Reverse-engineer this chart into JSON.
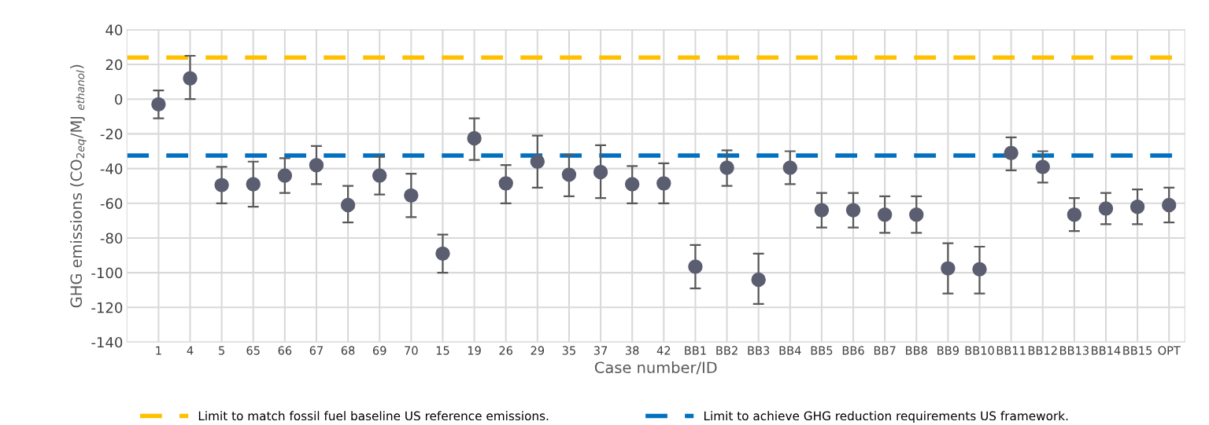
{
  "chart_data": {
    "type": "scatter",
    "xlabel": "Case number/ID",
    "ylabel": "GHG emissions (CO$_{2eq}$/MJ $_{ethanol}$)",
    "categories": [
      "1",
      "4",
      "5",
      "65",
      "66",
      "67",
      "68",
      "69",
      "70",
      "15",
      "19",
      "26",
      "29",
      "35",
      "37",
      "38",
      "42",
      "BB1",
      "BB2",
      "BB3",
      "BB4",
      "BB5",
      "BB6",
      "BB7",
      "BB8",
      "BB9",
      "BB10",
      "BB11",
      "BB12",
      "BB13",
      "BB14",
      "BB15",
      "OPT"
    ],
    "series": [
      {
        "color": "#5b5e70",
        "values": [
          -3,
          12,
          -49.5,
          -49,
          -44,
          -38,
          -61,
          -44,
          -55.5,
          -89,
          -22.5,
          -48.5,
          -36,
          -43.5,
          -42,
          -49,
          -48.5,
          -96.5,
          -39.5,
          -104,
          -39.5,
          -64,
          -64,
          -66.5,
          -66.5,
          -97.5,
          -98,
          -31,
          -39,
          -66.5,
          -63,
          -62,
          -61
        ],
        "errors": [
          [
            -11,
            5
          ],
          [
            0,
            25
          ],
          [
            -60,
            -39
          ],
          [
            -62,
            -36
          ],
          [
            -54,
            -34
          ],
          [
            -49,
            -27
          ],
          [
            -71,
            -50
          ],
          [
            -55,
            -33
          ],
          [
            -68,
            -43
          ],
          [
            -100,
            -78
          ],
          [
            -35,
            -11
          ],
          [
            -60,
            -38
          ],
          [
            -51,
            -21
          ],
          [
            -56,
            -32
          ],
          [
            -57,
            -26.5
          ],
          [
            -60,
            -38.5
          ],
          [
            -60,
            -37
          ],
          [
            -109,
            -84
          ],
          [
            -50,
            -29.5
          ],
          [
            -118,
            -89
          ],
          [
            -49,
            -30
          ],
          [
            -74,
            -54
          ],
          [
            -74,
            -54
          ],
          [
            -77,
            -56
          ],
          [
            -77,
            -56
          ],
          [
            -112,
            -83
          ],
          [
            -112,
            -85
          ],
          [
            -41,
            -22
          ],
          [
            -48,
            -30
          ],
          [
            -76,
            -57
          ],
          [
            -72,
            -54
          ],
          [
            -72,
            -52
          ],
          [
            -71,
            -51
          ]
        ]
      }
    ],
    "ylim": [
      -140,
      40
    ],
    "yticks": [
      -140,
      -120,
      -100,
      -80,
      -60,
      -40,
      -20,
      0,
      20,
      40
    ],
    "ref_lines": [
      {
        "axis": "y",
        "value": 24,
        "label": "Limit to match fossil fuel baseline US reference emissions.",
        "color": "#ffc000",
        "line_style": "dashed"
      },
      {
        "axis": "y",
        "value": -32.5,
        "label": "Limit to achieve GHG reduction requirements US framework.",
        "color": "#0070c0",
        "line_style": "dashed"
      }
    ],
    "grid": true,
    "legend": "bottom",
    "marker": "circle"
  }
}
